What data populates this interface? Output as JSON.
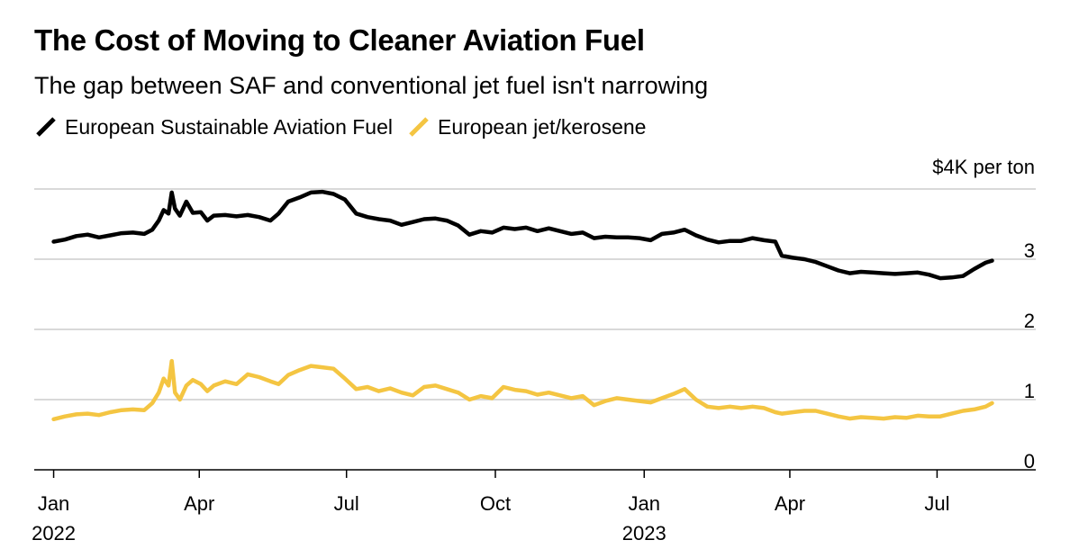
{
  "title": "The Cost of Moving to Cleaner Aviation Fuel",
  "subtitle": "The gap between SAF and conventional jet fuel isn't narrowing",
  "colors": {
    "saf": "#000000",
    "jet": "#f4c542",
    "grid": "#d9d9d9",
    "axis": "#000000"
  },
  "chart_data": {
    "type": "line",
    "y_unit_label": "$4K per ton",
    "ylim": [
      0,
      4
    ],
    "y_ticks": [
      {
        "value": 0,
        "label": "0"
      },
      {
        "value": 1,
        "label": "1"
      },
      {
        "value": 2,
        "label": "2"
      },
      {
        "value": 3,
        "label": "3"
      }
    ],
    "xlim": [
      "2021-12-20",
      "2023-08-31"
    ],
    "x_ticks": [
      {
        "date": "2022-01-01",
        "label": "Jan",
        "year": "2022"
      },
      {
        "date": "2022-04-01",
        "label": "Apr",
        "year": ""
      },
      {
        "date": "2022-07-01",
        "label": "Jul",
        "year": ""
      },
      {
        "date": "2022-10-01",
        "label": "Oct",
        "year": ""
      },
      {
        "date": "2023-01-01",
        "label": "Jan",
        "year": "2023"
      },
      {
        "date": "2023-04-01",
        "label": "Apr",
        "year": ""
      },
      {
        "date": "2023-07-01",
        "label": "Jul",
        "year": ""
      }
    ],
    "grid": true,
    "legend_position": "top-left",
    "series": [
      {
        "name": "European Sustainable Aviation Fuel",
        "color": "#000000",
        "points": [
          [
            "2022-01-01",
            3.25
          ],
          [
            "2022-01-08",
            3.28
          ],
          [
            "2022-01-15",
            3.33
          ],
          [
            "2022-01-22",
            3.35
          ],
          [
            "2022-01-29",
            3.31
          ],
          [
            "2022-02-05",
            3.34
          ],
          [
            "2022-02-12",
            3.37
          ],
          [
            "2022-02-19",
            3.38
          ],
          [
            "2022-02-26",
            3.36
          ],
          [
            "2022-03-03",
            3.42
          ],
          [
            "2022-03-07",
            3.55
          ],
          [
            "2022-03-10",
            3.7
          ],
          [
            "2022-03-13",
            3.65
          ],
          [
            "2022-03-15",
            3.95
          ],
          [
            "2022-03-17",
            3.72
          ],
          [
            "2022-03-20",
            3.62
          ],
          [
            "2022-03-24",
            3.82
          ],
          [
            "2022-03-28",
            3.66
          ],
          [
            "2022-04-02",
            3.67
          ],
          [
            "2022-04-06",
            3.55
          ],
          [
            "2022-04-10",
            3.62
          ],
          [
            "2022-04-17",
            3.63
          ],
          [
            "2022-04-24",
            3.61
          ],
          [
            "2022-05-01",
            3.63
          ],
          [
            "2022-05-08",
            3.6
          ],
          [
            "2022-05-15",
            3.55
          ],
          [
            "2022-05-20",
            3.65
          ],
          [
            "2022-05-26",
            3.82
          ],
          [
            "2022-06-02",
            3.88
          ],
          [
            "2022-06-09",
            3.95
          ],
          [
            "2022-06-16",
            3.96
          ],
          [
            "2022-06-23",
            3.93
          ],
          [
            "2022-06-30",
            3.85
          ],
          [
            "2022-07-07",
            3.65
          ],
          [
            "2022-07-14",
            3.6
          ],
          [
            "2022-07-21",
            3.57
          ],
          [
            "2022-07-28",
            3.55
          ],
          [
            "2022-08-04",
            3.49
          ],
          [
            "2022-08-11",
            3.53
          ],
          [
            "2022-08-18",
            3.57
          ],
          [
            "2022-08-25",
            3.58
          ],
          [
            "2022-09-01",
            3.55
          ],
          [
            "2022-09-08",
            3.48
          ],
          [
            "2022-09-15",
            3.35
          ],
          [
            "2022-09-22",
            3.4
          ],
          [
            "2022-09-29",
            3.38
          ],
          [
            "2022-10-06",
            3.45
          ],
          [
            "2022-10-13",
            3.43
          ],
          [
            "2022-10-20",
            3.45
          ],
          [
            "2022-10-27",
            3.4
          ],
          [
            "2022-11-03",
            3.44
          ],
          [
            "2022-11-10",
            3.4
          ],
          [
            "2022-11-17",
            3.36
          ],
          [
            "2022-11-24",
            3.38
          ],
          [
            "2022-12-01",
            3.3
          ],
          [
            "2022-12-08",
            3.32
          ],
          [
            "2022-12-15",
            3.31
          ],
          [
            "2022-12-22",
            3.31
          ],
          [
            "2022-12-29",
            3.3
          ],
          [
            "2023-01-05",
            3.27
          ],
          [
            "2023-01-12",
            3.36
          ],
          [
            "2023-01-19",
            3.38
          ],
          [
            "2023-01-26",
            3.42
          ],
          [
            "2023-02-02",
            3.34
          ],
          [
            "2023-02-09",
            3.28
          ],
          [
            "2023-02-16",
            3.24
          ],
          [
            "2023-02-23",
            3.26
          ],
          [
            "2023-03-02",
            3.26
          ],
          [
            "2023-03-09",
            3.3
          ],
          [
            "2023-03-16",
            3.27
          ],
          [
            "2023-03-23",
            3.25
          ],
          [
            "2023-03-27",
            3.05
          ],
          [
            "2023-04-03",
            3.02
          ],
          [
            "2023-04-10",
            3.0
          ],
          [
            "2023-04-17",
            2.96
          ],
          [
            "2023-04-24",
            2.9
          ],
          [
            "2023-05-01",
            2.84
          ],
          [
            "2023-05-08",
            2.8
          ],
          [
            "2023-05-15",
            2.82
          ],
          [
            "2023-05-22",
            2.81
          ],
          [
            "2023-05-29",
            2.8
          ],
          [
            "2023-06-05",
            2.79
          ],
          [
            "2023-06-12",
            2.8
          ],
          [
            "2023-06-19",
            2.81
          ],
          [
            "2023-06-26",
            2.78
          ],
          [
            "2023-07-03",
            2.73
          ],
          [
            "2023-07-10",
            2.74
          ],
          [
            "2023-07-17",
            2.76
          ],
          [
            "2023-07-24",
            2.86
          ],
          [
            "2023-07-31",
            2.95
          ],
          [
            "2023-08-04",
            2.98
          ]
        ]
      },
      {
        "name": "European jet/kerosene",
        "color": "#f4c542",
        "points": [
          [
            "2022-01-01",
            0.72
          ],
          [
            "2022-01-08",
            0.76
          ],
          [
            "2022-01-15",
            0.79
          ],
          [
            "2022-01-22",
            0.8
          ],
          [
            "2022-01-29",
            0.78
          ],
          [
            "2022-02-05",
            0.82
          ],
          [
            "2022-02-12",
            0.85
          ],
          [
            "2022-02-19",
            0.86
          ],
          [
            "2022-02-26",
            0.85
          ],
          [
            "2022-03-03",
            0.95
          ],
          [
            "2022-03-07",
            1.1
          ],
          [
            "2022-03-10",
            1.3
          ],
          [
            "2022-03-13",
            1.2
          ],
          [
            "2022-03-15",
            1.55
          ],
          [
            "2022-03-17",
            1.1
          ],
          [
            "2022-03-20",
            1.0
          ],
          [
            "2022-03-24",
            1.2
          ],
          [
            "2022-03-28",
            1.28
          ],
          [
            "2022-04-02",
            1.22
          ],
          [
            "2022-04-06",
            1.12
          ],
          [
            "2022-04-10",
            1.2
          ],
          [
            "2022-04-17",
            1.26
          ],
          [
            "2022-04-24",
            1.22
          ],
          [
            "2022-05-01",
            1.36
          ],
          [
            "2022-05-08",
            1.32
          ],
          [
            "2022-05-15",
            1.26
          ],
          [
            "2022-05-20",
            1.22
          ],
          [
            "2022-05-26",
            1.35
          ],
          [
            "2022-06-02",
            1.42
          ],
          [
            "2022-06-09",
            1.48
          ],
          [
            "2022-06-16",
            1.46
          ],
          [
            "2022-06-23",
            1.44
          ],
          [
            "2022-06-30",
            1.3
          ],
          [
            "2022-07-07",
            1.15
          ],
          [
            "2022-07-14",
            1.18
          ],
          [
            "2022-07-21",
            1.12
          ],
          [
            "2022-07-28",
            1.16
          ],
          [
            "2022-08-04",
            1.1
          ],
          [
            "2022-08-11",
            1.06
          ],
          [
            "2022-08-18",
            1.18
          ],
          [
            "2022-08-25",
            1.2
          ],
          [
            "2022-09-01",
            1.15
          ],
          [
            "2022-09-08",
            1.1
          ],
          [
            "2022-09-15",
            1.0
          ],
          [
            "2022-09-22",
            1.05
          ],
          [
            "2022-09-29",
            1.02
          ],
          [
            "2022-10-06",
            1.18
          ],
          [
            "2022-10-13",
            1.14
          ],
          [
            "2022-10-20",
            1.12
          ],
          [
            "2022-10-27",
            1.07
          ],
          [
            "2022-11-03",
            1.1
          ],
          [
            "2022-11-10",
            1.06
          ],
          [
            "2022-11-17",
            1.02
          ],
          [
            "2022-11-24",
            1.05
          ],
          [
            "2022-12-01",
            0.92
          ],
          [
            "2022-12-08",
            0.98
          ],
          [
            "2022-12-15",
            1.02
          ],
          [
            "2022-12-22",
            1.0
          ],
          [
            "2022-12-29",
            0.98
          ],
          [
            "2023-01-05",
            0.96
          ],
          [
            "2023-01-12",
            1.02
          ],
          [
            "2023-01-19",
            1.08
          ],
          [
            "2023-01-26",
            1.15
          ],
          [
            "2023-02-02",
            1.0
          ],
          [
            "2023-02-09",
            0.9
          ],
          [
            "2023-02-16",
            0.88
          ],
          [
            "2023-02-23",
            0.9
          ],
          [
            "2023-03-02",
            0.88
          ],
          [
            "2023-03-09",
            0.9
          ],
          [
            "2023-03-16",
            0.88
          ],
          [
            "2023-03-23",
            0.82
          ],
          [
            "2023-03-27",
            0.8
          ],
          [
            "2023-04-03",
            0.82
          ],
          [
            "2023-04-10",
            0.84
          ],
          [
            "2023-04-17",
            0.84
          ],
          [
            "2023-04-24",
            0.8
          ],
          [
            "2023-05-01",
            0.76
          ],
          [
            "2023-05-08",
            0.73
          ],
          [
            "2023-05-15",
            0.75
          ],
          [
            "2023-05-22",
            0.74
          ],
          [
            "2023-05-29",
            0.73
          ],
          [
            "2023-06-05",
            0.75
          ],
          [
            "2023-06-12",
            0.74
          ],
          [
            "2023-06-19",
            0.77
          ],
          [
            "2023-06-26",
            0.76
          ],
          [
            "2023-07-03",
            0.76
          ],
          [
            "2023-07-10",
            0.8
          ],
          [
            "2023-07-17",
            0.84
          ],
          [
            "2023-07-24",
            0.86
          ],
          [
            "2023-07-31",
            0.9
          ],
          [
            "2023-08-04",
            0.95
          ]
        ]
      }
    ]
  }
}
